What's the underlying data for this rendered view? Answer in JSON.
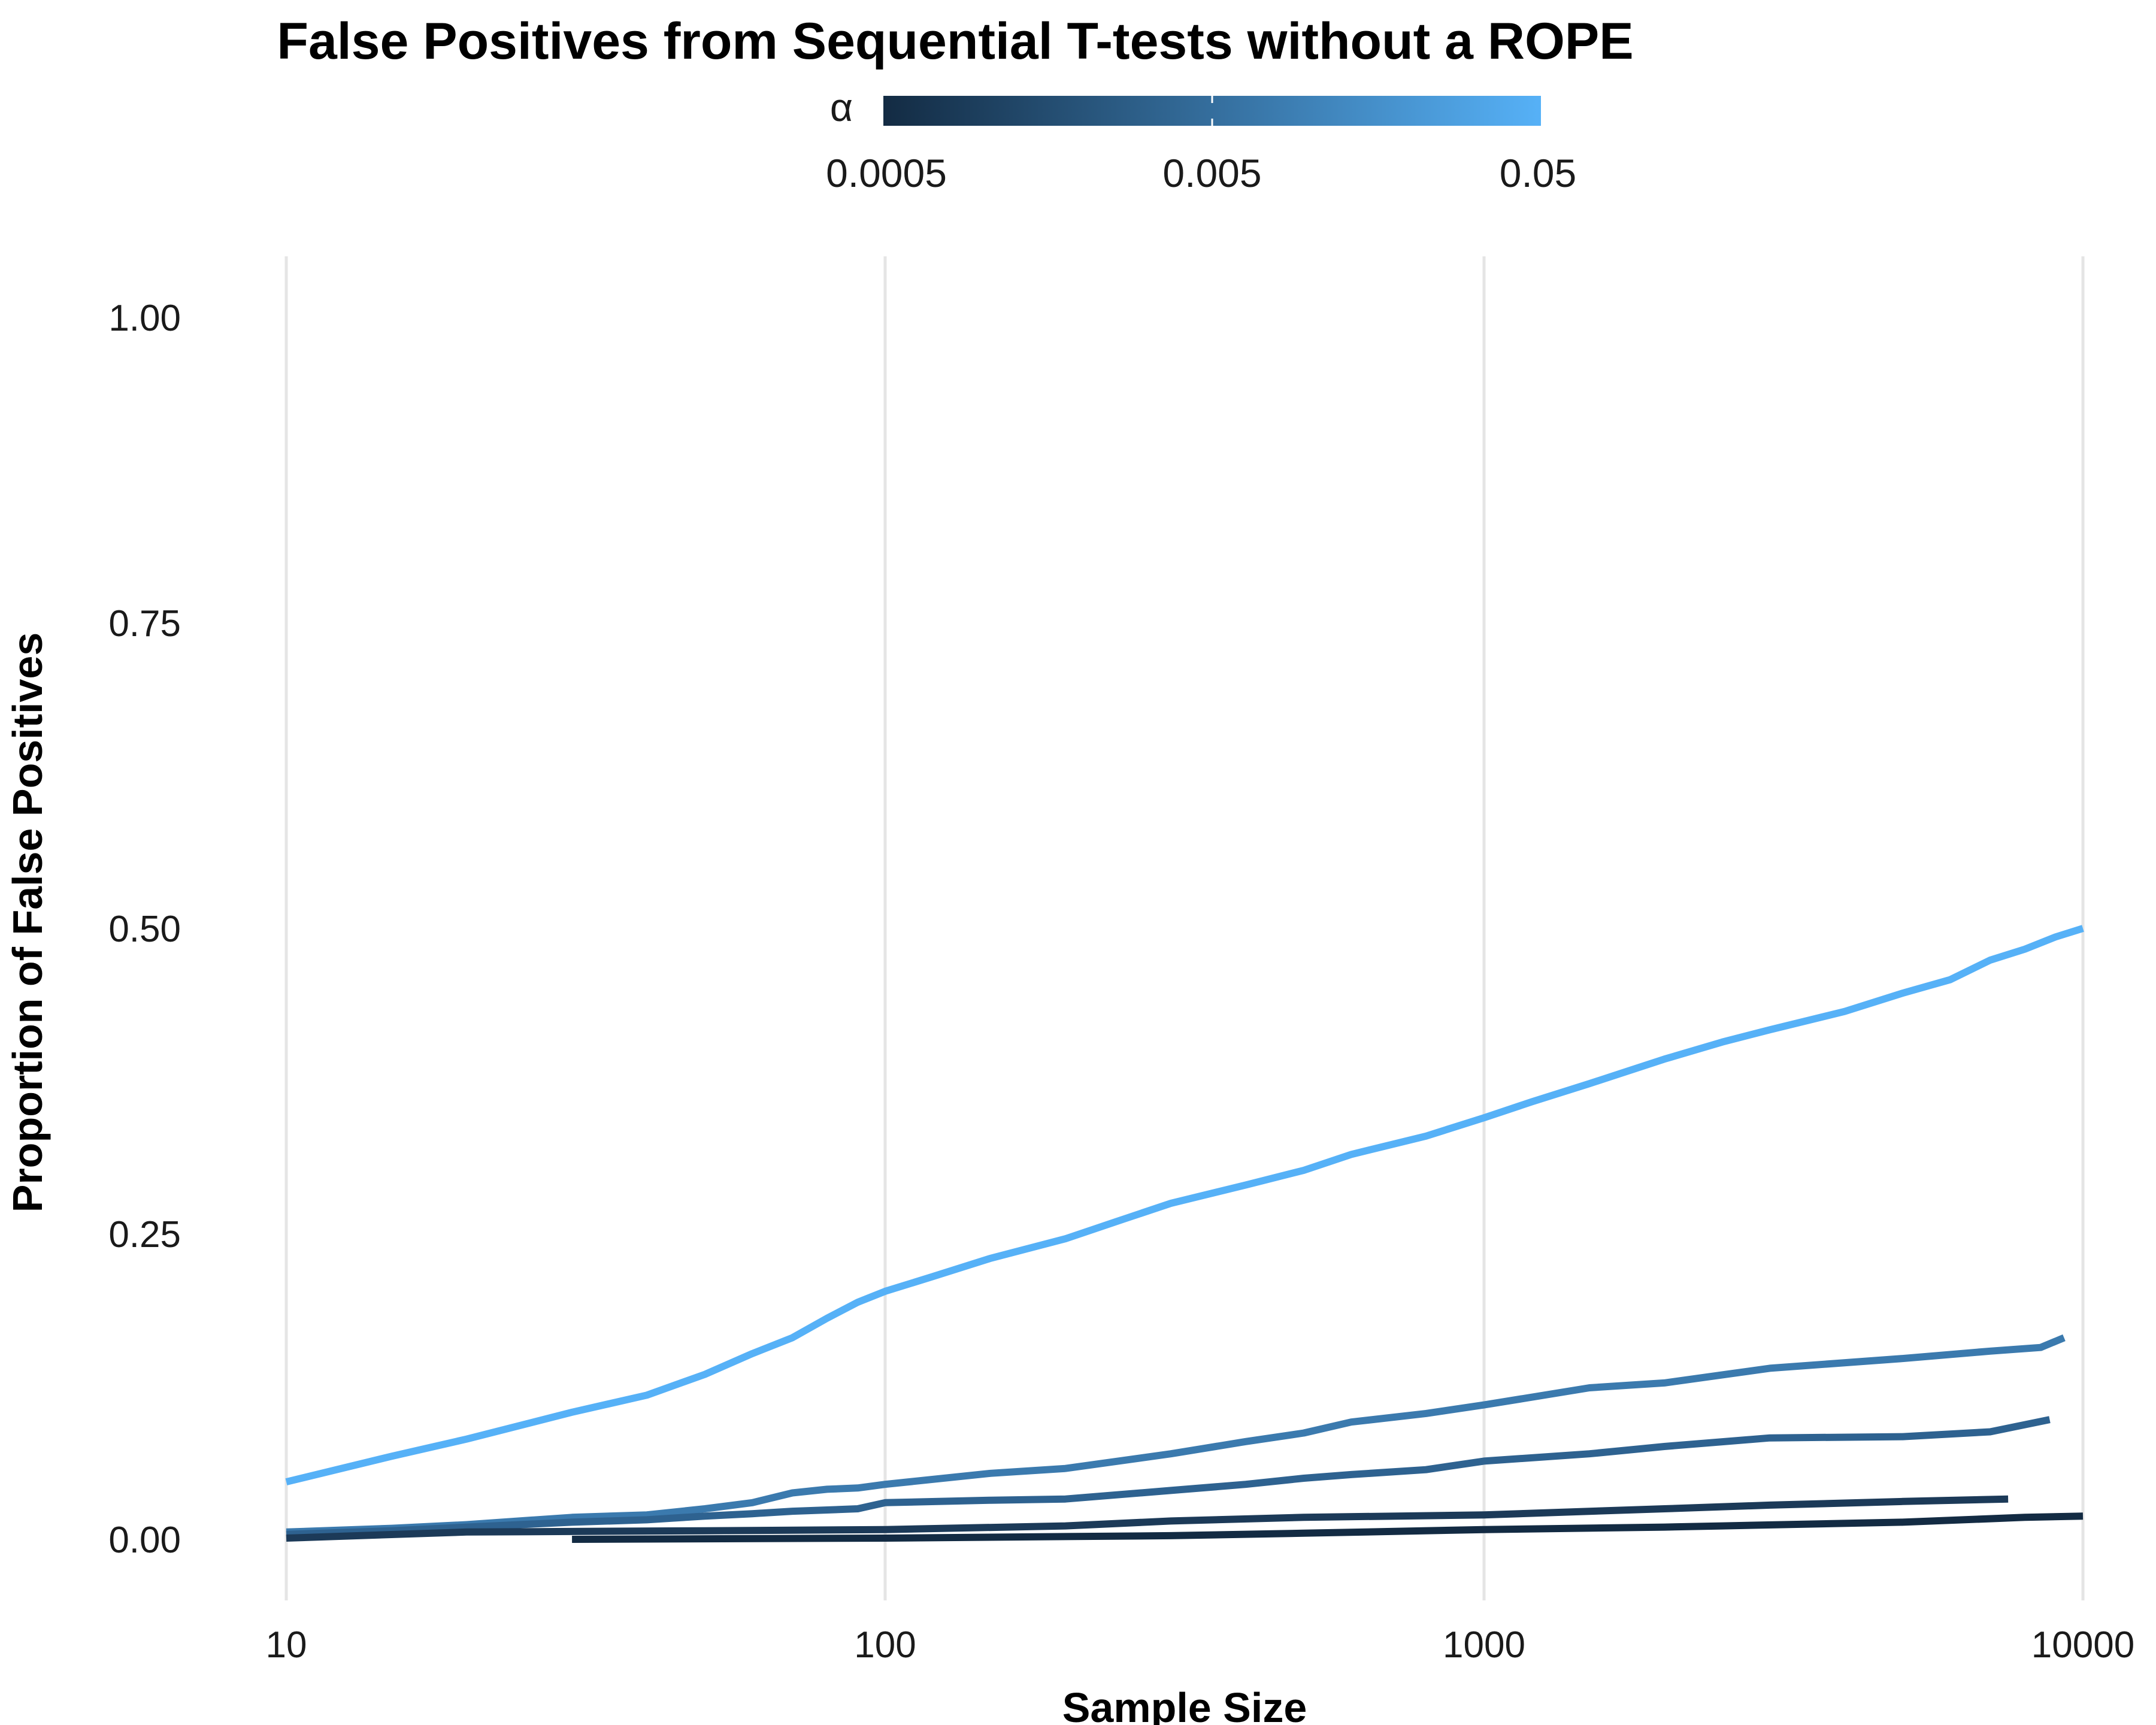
{
  "chart_data": {
    "type": "line",
    "title": "False Positives from Sequential T-tests without a ROPE",
    "xlabel": "Sample Size",
    "ylabel": "Proportion of False Positives",
    "x_scale": "log10",
    "xlim": [
      10,
      10000
    ],
    "ylim": [
      -0.05,
      1.05
    ],
    "x_ticks": [
      "10",
      "100",
      "1000",
      "10000"
    ],
    "y_ticks": [
      "0.00",
      "0.25",
      "0.50",
      "0.75",
      "1.00"
    ],
    "grid": "vertical major only",
    "legend": {
      "title": "α",
      "type": "colorbar",
      "placement": "top",
      "labels": [
        "0.0005",
        "0.005",
        "0.05"
      ],
      "low_color": "#132b43",
      "high_color": "#56b1f7"
    },
    "series": [
      {
        "alpha": 0.05,
        "color": "#56b1f7",
        "x": [
          10,
          15,
          20,
          30,
          40,
          50,
          60,
          70,
          80,
          90,
          100,
          120,
          150,
          200,
          250,
          300,
          400,
          500,
          600,
          800,
          1000,
          1200,
          1500,
          2000,
          2500,
          3000,
          4000,
          5000,
          6000,
          7000,
          8000,
          9000,
          10000
        ],
        "y": [
          0.047,
          0.068,
          0.082,
          0.104,
          0.118,
          0.135,
          0.152,
          0.165,
          0.181,
          0.194,
          0.203,
          0.215,
          0.23,
          0.246,
          0.262,
          0.275,
          0.29,
          0.302,
          0.315,
          0.33,
          0.345,
          0.358,
          0.373,
          0.393,
          0.407,
          0.417,
          0.432,
          0.447,
          0.458,
          0.474,
          0.483,
          0.493,
          0.5
        ]
      },
      {
        "alpha": 0.01,
        "color": "#3b7aae",
        "x": [
          10,
          15,
          20,
          30,
          40,
          50,
          60,
          70,
          80,
          90,
          100,
          150,
          200,
          300,
          400,
          500,
          600,
          800,
          1000,
          1500,
          2000,
          3000,
          5000,
          7000,
          8500,
          9300
        ],
        "y": [
          0.006,
          0.009,
          0.012,
          0.018,
          0.02,
          0.025,
          0.03,
          0.038,
          0.041,
          0.042,
          0.045,
          0.054,
          0.058,
          0.07,
          0.08,
          0.087,
          0.096,
          0.103,
          0.11,
          0.124,
          0.128,
          0.14,
          0.148,
          0.154,
          0.157,
          0.165
        ]
      },
      {
        "alpha": 0.005,
        "color": "#2e6290",
        "x": [
          10,
          15,
          20,
          30,
          40,
          50,
          60,
          70,
          80,
          90,
          100,
          150,
          200,
          300,
          400,
          500,
          600,
          800,
          1000,
          1500,
          2000,
          3000,
          5000,
          7000,
          8800
        ],
        "y": [
          0.004,
          0.007,
          0.01,
          0.014,
          0.016,
          0.019,
          0.021,
          0.023,
          0.024,
          0.025,
          0.03,
          0.032,
          0.033,
          0.04,
          0.045,
          0.05,
          0.053,
          0.057,
          0.064,
          0.07,
          0.076,
          0.083,
          0.084,
          0.088,
          0.098
        ]
      },
      {
        "alpha": 0.001,
        "color": "#1c3a58",
        "x": [
          10,
          20,
          50,
          100,
          200,
          300,
          500,
          1000,
          2000,
          3000,
          5000,
          7500
        ],
        "y": [
          0.001,
          0.006,
          0.007,
          0.008,
          0.011,
          0.015,
          0.018,
          0.02,
          0.025,
          0.028,
          0.031,
          0.033
        ]
      },
      {
        "alpha": 0.0005,
        "color": "#132b43",
        "x": [
          30,
          100,
          300,
          500,
          1000,
          2000,
          2500,
          5000,
          8000,
          10000
        ],
        "y": [
          0.0,
          0.001,
          0.003,
          0.005,
          0.008,
          0.01,
          0.011,
          0.014,
          0.018,
          0.019
        ]
      }
    ]
  }
}
